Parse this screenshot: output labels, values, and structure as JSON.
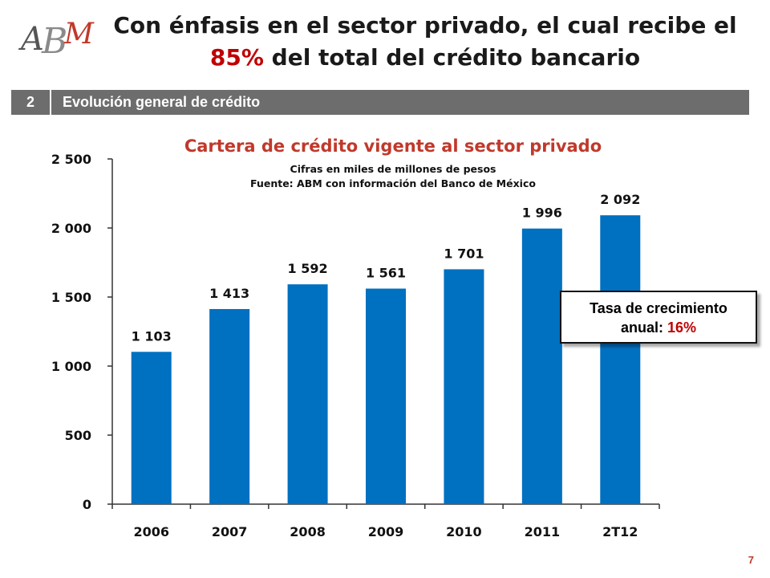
{
  "header": {
    "logo_text": "ABM",
    "title_line1": "Con énfasis en el sector privado, el cual recibe el",
    "title_accent": "85%",
    "title_line2_rest": " del total del crédito bancario"
  },
  "section": {
    "number": "2",
    "label": "Evolución general de crédito"
  },
  "callout": {
    "line1": "Tasa de crecimiento",
    "line2_prefix": "anual: ",
    "value": "16%"
  },
  "page_number": "7",
  "colors": {
    "bar": "#0070c0",
    "accent": "#c00000",
    "section_bar": "#6d6d6d"
  },
  "chart_data": {
    "type": "bar",
    "title": "Cartera de crédito vigente al sector privado",
    "subtitle1": "Cifras en miles de millones de pesos",
    "subtitle2": "Fuente: ABM con información del Banco de México",
    "categories": [
      "2006",
      "2007",
      "2008",
      "2009",
      "2010",
      "2011",
      "2T12"
    ],
    "values": [
      1103,
      1413,
      1592,
      1561,
      1701,
      1996,
      2092
    ],
    "value_labels": [
      "1 103",
      "1 413",
      "1 592",
      "1 561",
      "1 701",
      "1 996",
      "2 092"
    ],
    "ylim": [
      0,
      2500
    ],
    "yticks": [
      0,
      500,
      1000,
      1500,
      2000,
      2500
    ],
    "ytick_labels": [
      "0",
      "500",
      "1 000",
      "1 500",
      "2 000",
      "2 500"
    ],
    "grid": false
  }
}
